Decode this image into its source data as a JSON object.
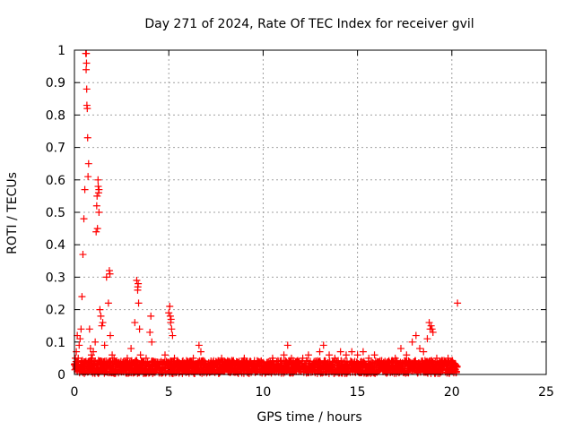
{
  "chart_data": {
    "type": "scatter",
    "title": "Day 271 of 2024, Rate Of TEC Index for receiver gvil",
    "xlabel": "GPS time / hours",
    "ylabel": "ROTI / TECUs",
    "xlim": [
      0,
      25
    ],
    "ylim": [
      0,
      1
    ],
    "xticks": [
      0,
      5,
      10,
      15,
      20,
      25
    ],
    "yticks": [
      0,
      0.1,
      0.2,
      0.3,
      0.4,
      0.5,
      0.6,
      0.7,
      0.8,
      0.9,
      1
    ],
    "xtick_labels": [
      "0",
      "5",
      "10",
      "15",
      "20",
      "25"
    ],
    "ytick_labels": [
      "0",
      "0.1",
      "0.2",
      "0.3",
      "0.4",
      "0.5",
      "0.6",
      "0.7",
      "0.8",
      "0.9",
      "1"
    ],
    "grid": true,
    "marker": "+",
    "color": "#ff0000",
    "series": [
      {
        "x": [
          0.0,
          0.05,
          0.1,
          0.15,
          0.2,
          0.25,
          0.3,
          0.35,
          0.4,
          0.45,
          0.5,
          0.55,
          0.6,
          0.62,
          0.65,
          0.68,
          0.7,
          0.72,
          0.75,
          0.8,
          0.85,
          0.9,
          0.95,
          1.0,
          1.1,
          1.15,
          1.2,
          1.25,
          1.3,
          1.35,
          1.4,
          1.45,
          1.5,
          1.6,
          1.7,
          1.8,
          1.9,
          2.0,
          2.1,
          2.2,
          2.4,
          2.6,
          2.8,
          3.0,
          3.2,
          3.3,
          3.35,
          3.4,
          3.45,
          3.5,
          3.6,
          3.8,
          4.0,
          4.05,
          4.1,
          4.2,
          4.4,
          4.6,
          4.8,
          5.0,
          5.05,
          5.1,
          5.15,
          5.2,
          5.3,
          5.5,
          5.8,
          6.0,
          6.3,
          6.6,
          6.7,
          6.9,
          7.2,
          7.5,
          7.8,
          8.1,
          8.4,
          8.7,
          9.0,
          9.3,
          9.6,
          9.9,
          10.2,
          10.5,
          10.8,
          11.1,
          11.3,
          11.5,
          11.8,
          12.1,
          12.4,
          12.7,
          13.0,
          13.2,
          13.5,
          13.8,
          14.1,
          14.4,
          14.7,
          15.0,
          15.3,
          15.6,
          15.9,
          16.2,
          16.5,
          16.8,
          17.0,
          17.3,
          17.6,
          17.9,
          18.1,
          18.3,
          18.5,
          18.7,
          18.8,
          18.9,
          19.0,
          19.2,
          19.4,
          19.6,
          19.8,
          20.0,
          20.2,
          20.3,
          0.1,
          0.2,
          0.4,
          0.5,
          0.63,
          0.64,
          0.66,
          1.18,
          1.22,
          1.26,
          1.3,
          1.28,
          1.85,
          1.88,
          3.36,
          3.38,
          5.08,
          5.12,
          18.85,
          18.95
        ],
        "y": [
          0.03,
          0.05,
          0.07,
          0.12,
          0.05,
          0.09,
          0.11,
          0.14,
          0.24,
          0.37,
          0.48,
          0.57,
          0.99,
          0.94,
          0.88,
          0.82,
          0.73,
          0.61,
          0.65,
          0.14,
          0.08,
          0.06,
          0.05,
          0.07,
          0.1,
          0.44,
          0.55,
          0.6,
          0.5,
          0.2,
          0.18,
          0.15,
          0.16,
          0.09,
          0.3,
          0.22,
          0.12,
          0.06,
          0.05,
          0.04,
          0.03,
          0.04,
          0.05,
          0.08,
          0.16,
          0.29,
          0.26,
          0.22,
          0.14,
          0.06,
          0.04,
          0.05,
          0.13,
          0.18,
          0.1,
          0.04,
          0.03,
          0.04,
          0.06,
          0.19,
          0.21,
          0.16,
          0.14,
          0.12,
          0.05,
          0.03,
          0.03,
          0.04,
          0.05,
          0.09,
          0.07,
          0.04,
          0.03,
          0.04,
          0.05,
          0.03,
          0.04,
          0.03,
          0.05,
          0.04,
          0.03,
          0.04,
          0.03,
          0.05,
          0.04,
          0.06,
          0.09,
          0.05,
          0.04,
          0.05,
          0.06,
          0.04,
          0.07,
          0.09,
          0.06,
          0.05,
          0.07,
          0.06,
          0.07,
          0.06,
          0.07,
          0.05,
          0.06,
          0.04,
          0.03,
          0.04,
          0.05,
          0.08,
          0.06,
          0.1,
          0.12,
          0.08,
          0.07,
          0.11,
          0.16,
          0.15,
          0.13,
          0.05,
          0.04,
          0.03,
          0.05,
          0.04,
          0.03,
          0.22,
          0.02,
          0.02,
          0.02,
          0.02,
          0.99,
          0.96,
          0.83,
          0.52,
          0.45,
          0.58,
          0.57,
          0.56,
          0.32,
          0.31,
          0.27,
          0.28,
          0.18,
          0.17,
          0.14,
          0.14
        ]
      }
    ],
    "noise_band": {
      "x_range": [
        0.0,
        20.3
      ],
      "y_range": [
        0.0,
        0.04
      ]
    }
  }
}
